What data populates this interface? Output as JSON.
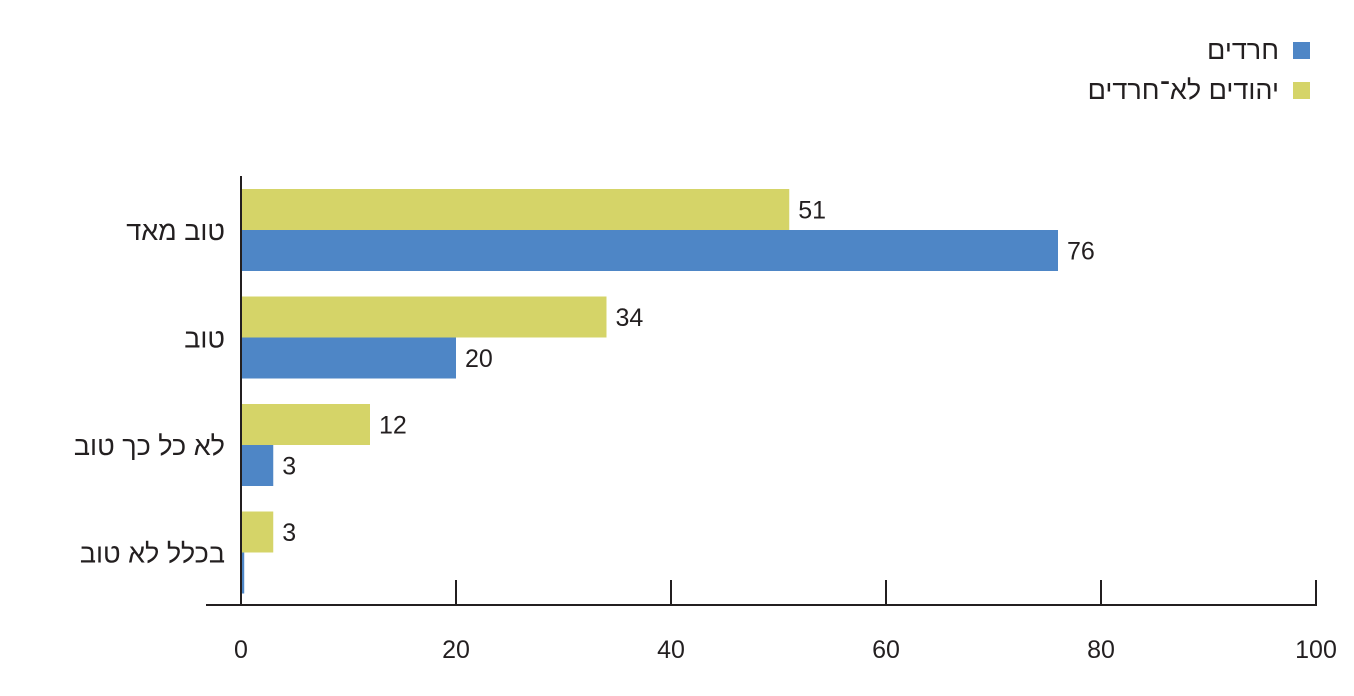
{
  "chart_data": {
    "type": "bar",
    "orientation": "horizontal",
    "categories": [
      "טוב מאד",
      "טוב",
      "לא כל כך טוב",
      "בכלל לא טוב"
    ],
    "series": [
      {
        "name": "יהודים לא־חרדים",
        "color": "#d5d468",
        "values": [
          51,
          34,
          12,
          3
        ],
        "value_labels": [
          "51",
          "34",
          "12",
          "3"
        ]
      },
      {
        "name": "חרדים",
        "color": "#4e86c6",
        "values": [
          76,
          20,
          3,
          0.3
        ],
        "value_labels": [
          "76",
          "20",
          "3",
          ""
        ]
      }
    ],
    "xlim": [
      0,
      100
    ],
    "xticks": [
      "0",
      "20",
      "40",
      "60",
      "80",
      "100"
    ],
    "legend_placement": "top-right",
    "grid": false
  },
  "legend": {
    "items": [
      {
        "label": "חרדים",
        "color": "#4e86c6"
      },
      {
        "label": "יהודים לא־חרדים",
        "color": "#d5d468"
      }
    ]
  }
}
